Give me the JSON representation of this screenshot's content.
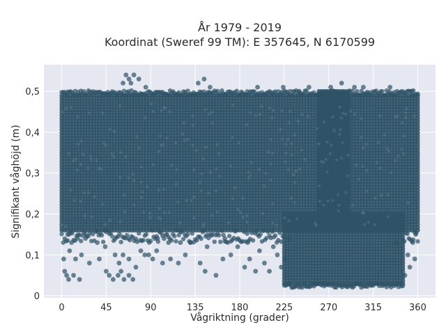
{
  "chart_data": {
    "type": "scatter",
    "title_line1": "År 1979 - 2019",
    "title_line2": "Koordinat (Sweref 99 TM): E 357645, N 6170599",
    "xlabel": "Vågriktning (grader)",
    "ylabel": "Signifikant våghöjd (m)",
    "xlim": [
      -18,
      378
    ],
    "ylim": [
      -0.005,
      0.565
    ],
    "xticks": [
      0,
      45,
      90,
      135,
      180,
      225,
      270,
      315,
      360
    ],
    "xtick_labels": [
      "0",
      "45",
      "90",
      "135",
      "180",
      "225",
      "270",
      "315",
      "360"
    ],
    "yticks": [
      0,
      0.1,
      0.2,
      0.3,
      0.4,
      0.5
    ],
    "ytick_labels": [
      "0",
      "0,1",
      "0,2",
      "0,3",
      "0,4",
      "0,5"
    ],
    "grid": true,
    "marker_color": "#2f5266",
    "background": "#e5e8f1",
    "dense_regions": [
      {
        "x": [
          0,
          360
        ],
        "y": [
          0.16,
          0.49
        ]
      },
      {
        "x": [
          225,
          345
        ],
        "y": [
          0.03,
          0.2
        ]
      },
      {
        "x": [
          260,
          290
        ],
        "y": [
          0.2,
          0.5
        ]
      }
    ],
    "points": [
      [
        65,
        0.54
      ],
      [
        73,
        0.54
      ],
      [
        68,
        0.53
      ],
      [
        78,
        0.53
      ],
      [
        62,
        0.52
      ],
      [
        70,
        0.52
      ],
      [
        85,
        0.51
      ],
      [
        144,
        0.53
      ],
      [
        138,
        0.52
      ],
      [
        150,
        0.51
      ],
      [
        283,
        0.52
      ],
      [
        272,
        0.51
      ],
      [
        296,
        0.51
      ],
      [
        224,
        0.51
      ],
      [
        198,
        0.51
      ],
      [
        250,
        0.51
      ],
      [
        240,
        0.5
      ],
      [
        305,
        0.51
      ],
      [
        332,
        0.51
      ],
      [
        354,
        0.5
      ],
      [
        8,
        0.11
      ],
      [
        2,
        0.09
      ],
      [
        3,
        0.06
      ],
      [
        5,
        0.05
      ],
      [
        7,
        0.04
      ],
      [
        12,
        0.05
      ],
      [
        18,
        0.04
      ],
      [
        14,
        0.09
      ],
      [
        20,
        0.1
      ],
      [
        10,
        0.13
      ],
      [
        28,
        0.08
      ],
      [
        38,
        0.09
      ],
      [
        45,
        0.06
      ],
      [
        52,
        0.04
      ],
      [
        48,
        0.05
      ],
      [
        57,
        0.05
      ],
      [
        60,
        0.06
      ],
      [
        63,
        0.04
      ],
      [
        68,
        0.05
      ],
      [
        72,
        0.04
      ],
      [
        75,
        0.07
      ],
      [
        58,
        0.08
      ],
      [
        62,
        0.1
      ],
      [
        54,
        0.1
      ],
      [
        44,
        0.12
      ],
      [
        68,
        0.09
      ],
      [
        80,
        0.11
      ],
      [
        84,
        0.1
      ],
      [
        88,
        0.1
      ],
      [
        92,
        0.09
      ],
      [
        96,
        0.11
      ],
      [
        102,
        0.08
      ],
      [
        110,
        0.09
      ],
      [
        118,
        0.08
      ],
      [
        125,
        0.1
      ],
      [
        130,
        0.13
      ],
      [
        108,
        0.13
      ],
      [
        97,
        0.14
      ],
      [
        140,
        0.08
      ],
      [
        145,
        0.06
      ],
      [
        147,
        0.12
      ],
      [
        156,
        0.05
      ],
      [
        163,
        0.09
      ],
      [
        171,
        0.1
      ],
      [
        178,
        0.12
      ],
      [
        185,
        0.07
      ],
      [
        190,
        0.09
      ],
      [
        196,
        0.06
      ],
      [
        200,
        0.11
      ],
      [
        205,
        0.08
      ],
      [
        210,
        0.06
      ],
      [
        214,
        0.12
      ],
      [
        218,
        0.1
      ],
      [
        222,
        0.07
      ],
      [
        226,
        0.09
      ],
      [
        350,
        0.1
      ],
      [
        355,
        0.13
      ],
      [
        347,
        0.05
      ],
      [
        352,
        0.07
      ],
      [
        357,
        0.09
      ],
      [
        36,
        0.13
      ],
      [
        24,
        0.14
      ],
      [
        16,
        0.14
      ],
      [
        6,
        0.15
      ],
      [
        120,
        0.13
      ],
      [
        165,
        0.14
      ],
      [
        188,
        0.13
      ],
      [
        230,
        0.14
      ],
      [
        338,
        0.13
      ],
      [
        358,
        0.15
      ]
    ]
  }
}
